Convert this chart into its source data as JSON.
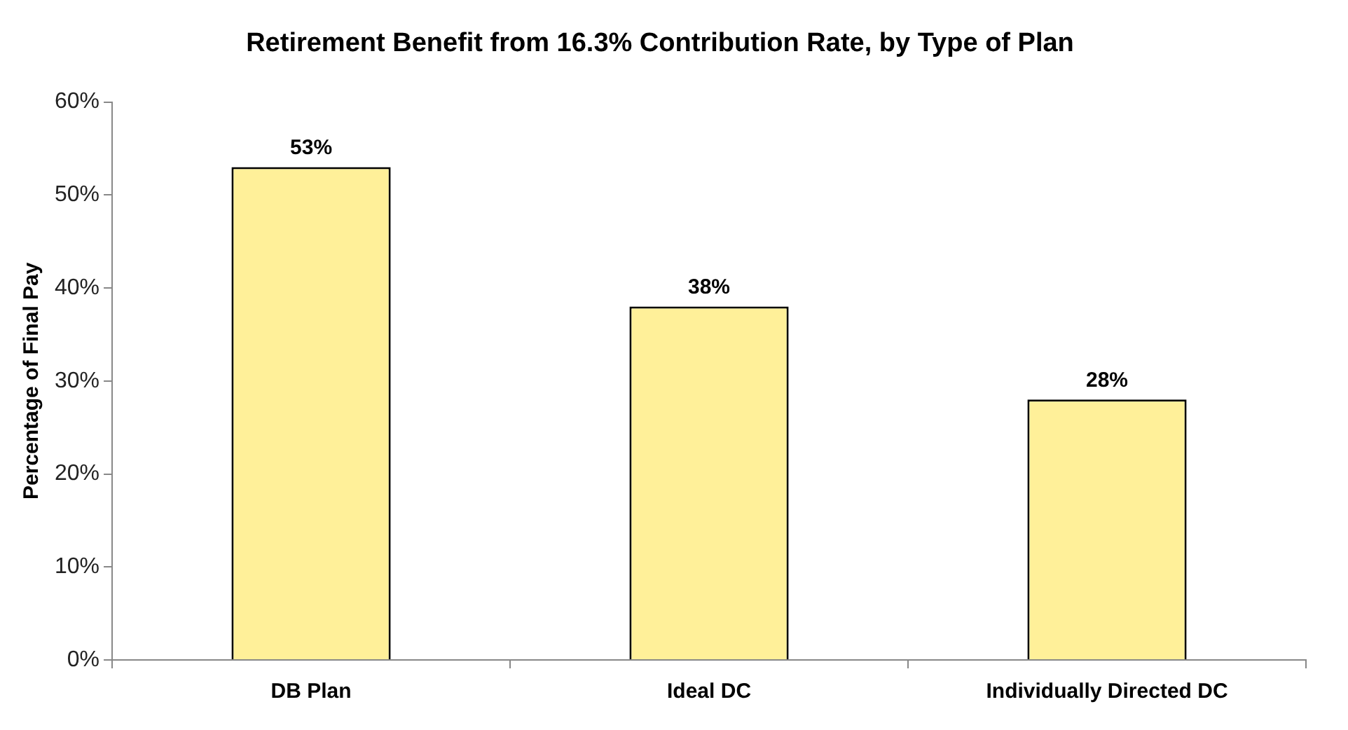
{
  "chart_data": {
    "type": "bar",
    "title": "Retirement Benefit from 16.3% Contribution Rate, by Type of Plan",
    "ylabel": "Percentage of Final Pay",
    "categories": [
      "DB Plan",
      "Ideal DC",
      "Individually Directed DC"
    ],
    "values": [
      53,
      38,
      28
    ],
    "value_labels": [
      "53%",
      "38%",
      "28%"
    ],
    "color": "#fff099",
    "ylim": [
      0,
      60
    ],
    "yticks": [
      {
        "value": 0,
        "label": "0%"
      },
      {
        "value": 10,
        "label": "10%"
      },
      {
        "value": 20,
        "label": "20%"
      },
      {
        "value": 30,
        "label": "30%"
      },
      {
        "value": 40,
        "label": "40%"
      },
      {
        "value": 50,
        "label": "50%"
      },
      {
        "value": 60,
        "label": "60%"
      }
    ],
    "grid": false,
    "legend": false
  }
}
